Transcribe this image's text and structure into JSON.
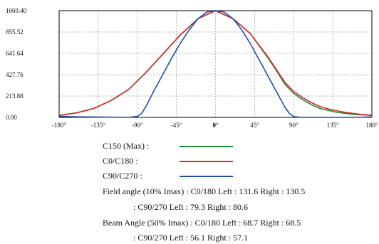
{
  "chart_data": {
    "type": "line",
    "title": "",
    "xlabel": "",
    "ylabel": "",
    "xlim": [
      -180,
      180
    ],
    "ylim": [
      0,
      1069.4
    ],
    "y_ticks": [
      "1069.40",
      "855.52",
      "641.64",
      "427.76",
      "213.88",
      "0.00"
    ],
    "y_tick_values": [
      1069.4,
      855.52,
      641.64,
      427.76,
      213.88,
      0.0
    ],
    "x_ticks": [
      "-180°",
      "-135°",
      "-90°",
      "-45°",
      "0°",
      "45°",
      "90°",
      "135°",
      "180°"
    ],
    "x_tick_values": [
      -180,
      -135,
      -90,
      -45,
      0,
      45,
      90,
      135,
      180
    ],
    "grid": true,
    "series": [
      {
        "name": "C150 (Max) :",
        "color": "#1e8a3c",
        "x": [
          -180,
          -160,
          -140,
          -120,
          -100,
          -80,
          -60,
          -40,
          -20,
          0,
          20,
          40,
          50,
          60,
          70,
          80,
          90,
          100,
          110,
          120,
          130,
          140,
          150,
          160,
          170,
          180
        ],
        "y": [
          20,
          45,
          90,
          170,
          280,
          450,
          640,
          830,
          990,
          1069,
          990,
          840,
          720,
          600,
          470,
          330,
          240,
          180,
          130,
          90,
          70,
          50,
          40,
          30,
          25,
          20
        ]
      },
      {
        "name": "C0/C180 :",
        "color": "#d42a2a",
        "x": [
          -180,
          -160,
          -140,
          -120,
          -100,
          -80,
          -60,
          -40,
          -20,
          0,
          20,
          40,
          50,
          60,
          70,
          80,
          90,
          100,
          110,
          120,
          130,
          140,
          150,
          160,
          170,
          180
        ],
        "y": [
          20,
          45,
          90,
          170,
          280,
          450,
          640,
          830,
          990,
          1069,
          990,
          840,
          725,
          610,
          480,
          350,
          260,
          200,
          150,
          110,
          85,
          65,
          50,
          38,
          28,
          20
        ]
      },
      {
        "name": "C90/C270 :",
        "color": "#1f4fa8",
        "x": [
          -180,
          -160,
          -140,
          -120,
          -100,
          -90,
          -85,
          -80,
          -70,
          -60,
          -50,
          -40,
          -30,
          -20,
          -10,
          0,
          10,
          20,
          30,
          40,
          50,
          60,
          70,
          80,
          85,
          90,
          100,
          120,
          140,
          160,
          180
        ],
        "y": [
          10,
          6,
          4,
          2,
          0,
          10,
          40,
          110,
          280,
          440,
          600,
          750,
          880,
          990,
          1055,
          1069,
          1055,
          990,
          880,
          740,
          580,
          420,
          260,
          100,
          40,
          8,
          0,
          0,
          0,
          0,
          5
        ]
      }
    ]
  },
  "legend": [
    {
      "label": "C150 (Max) :",
      "color": "#1e8a3c"
    },
    {
      "label": "C0/C180 :",
      "color": "#d42a2a"
    },
    {
      "label": "C90/C270 :",
      "color": "#1f4fa8"
    }
  ],
  "notes": {
    "field_c0": "Field angle (10% Imax) : C0/180 Left : 131.6 Right : 130.5",
    "field_c90": ": C90/270 Left : 79.3 Right : 80.6",
    "beam_c0": "Beam Angle (50% Imax) : C0/180 Left : 68.7 Right : 68.5",
    "beam_c90": ": C90/270 Left : 56.1 Right : 57.1"
  }
}
